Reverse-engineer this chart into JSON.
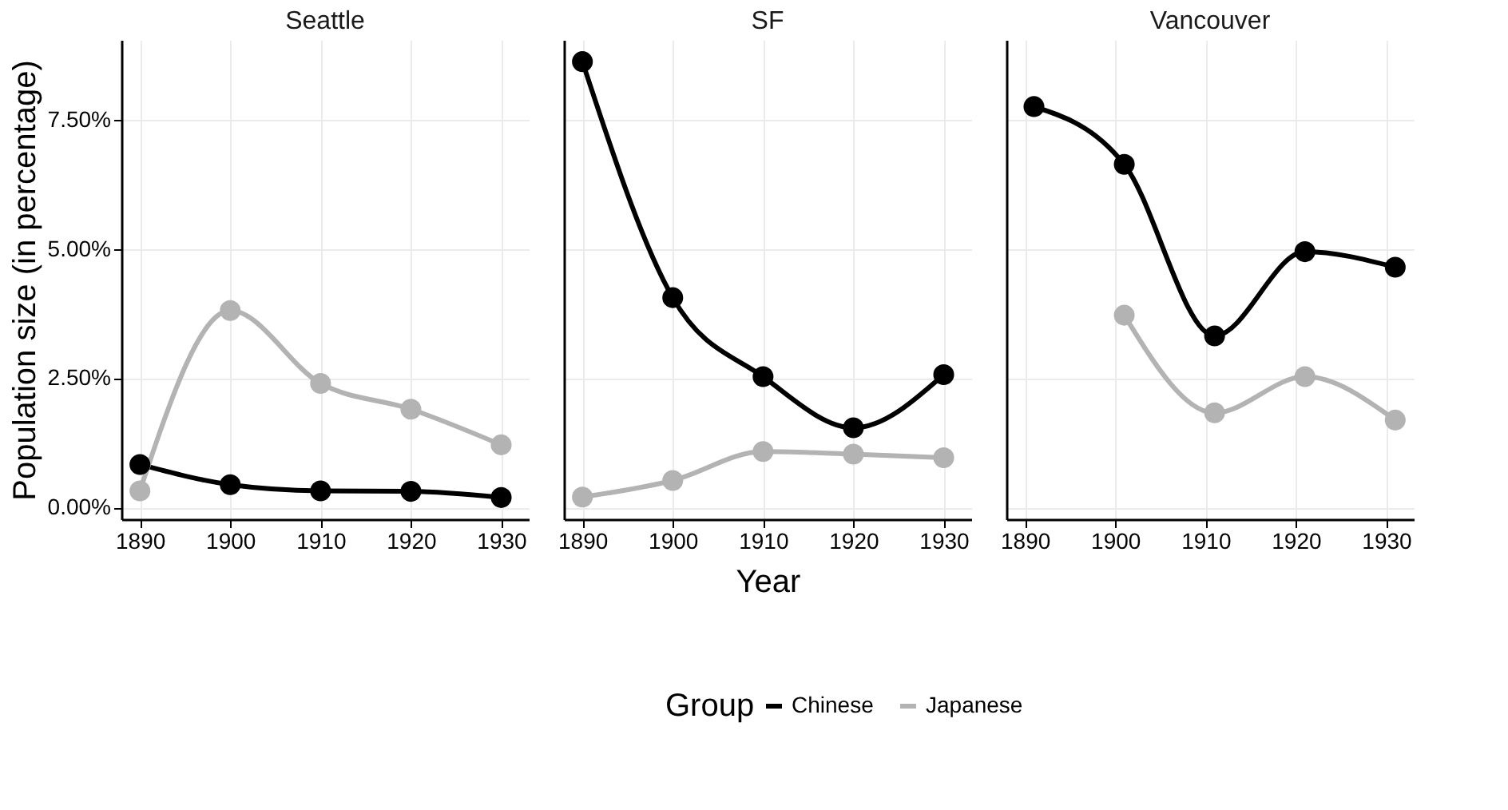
{
  "chart_data": [
    {
      "type": "line",
      "title": "Seattle",
      "ylabel": "Population size (in percentage)",
      "legend_title": "Group",
      "legend": "bottom",
      "x": [
        1890,
        1900,
        1910,
        1920,
        1930
      ],
      "xlim": [
        1887.95,
        1933.05
      ],
      "xticks": [
        1890,
        1900,
        1910,
        1920,
        1930
      ],
      "ylim": [
        -0.23,
        9.05
      ],
      "yticks": [
        {
          "value": 0,
          "label": "0.00%"
        },
        {
          "value": 2.5,
          "label": "2.50%"
        },
        {
          "value": 5,
          "label": "5.00%"
        },
        {
          "value": 7.5,
          "label": "7.50%"
        }
      ],
      "grid": true,
      "marker": "circle",
      "line_style": "solid",
      "series": [
        {
          "name": "Chinese",
          "color": "#000000",
          "values": [
            0.83,
            0.44,
            0.32,
            0.31,
            0.19
          ]
        },
        {
          "name": "Japanese",
          "color": "#b3b3b3",
          "values": [
            0.32,
            3.81,
            2.4,
            1.9,
            1.21
          ]
        }
      ]
    },
    {
      "type": "line",
      "title": "SF",
      "xlabel": "Year",
      "tick_labels": "x",
      "x": [
        1890,
        1900,
        1910,
        1920,
        1930
      ],
      "xlim": [
        1887.95,
        1933.05
      ],
      "xticks": [
        1890,
        1900,
        1910,
        1920,
        1930
      ],
      "ylim": [
        -0.23,
        9.05
      ],
      "yticks": [
        0,
        2.5,
        5,
        7.5
      ],
      "grid": true,
      "marker": "circle",
      "line_style": "solid",
      "series": [
        {
          "name": "Chinese",
          "color": "#000000",
          "values": [
            8.63,
            4.06,
            2.53,
            1.54,
            2.57
          ]
        },
        {
          "name": "Japanese",
          "color": "#b3b3b3",
          "values": [
            0.2,
            0.52,
            1.08,
            1.03,
            0.96
          ]
        }
      ]
    },
    {
      "type": "line",
      "title": "Vancouver",
      "tick_labels": "x",
      "x": [
        1891,
        1901,
        1911,
        1921,
        1931
      ],
      "xlim": [
        1887.95,
        1933.05
      ],
      "xticks": [
        1890,
        1900,
        1910,
        1920,
        1930
      ],
      "ylim": [
        -0.23,
        9.05
      ],
      "yticks": [
        0,
        2.5,
        5,
        7.5
      ],
      "grid": true,
      "marker": "circle",
      "line_style": "solid",
      "series": [
        {
          "name": "Chinese",
          "color": "#000000",
          "values": [
            7.76,
            6.64,
            3.32,
            4.95,
            4.65
          ]
        },
        {
          "name": "Japanese",
          "color": "#b3b3b3",
          "values": [
            null,
            3.72,
            1.83,
            2.53,
            1.69
          ]
        }
      ]
    }
  ]
}
